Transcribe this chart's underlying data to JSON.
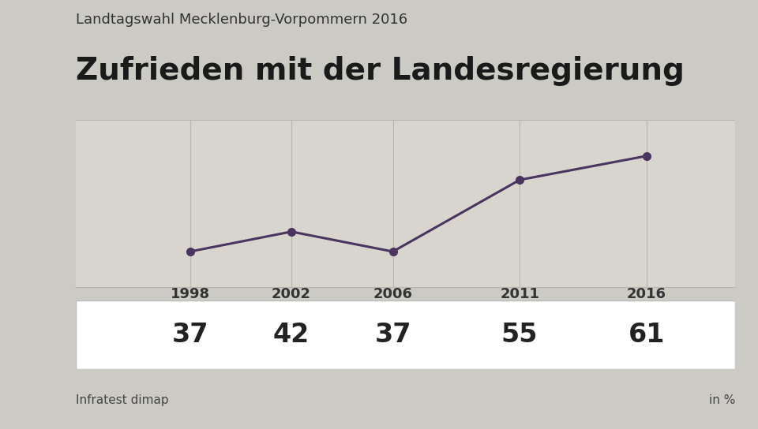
{
  "title_main": "Zufrieden mit der Landesregierung",
  "title_sub": "Landtagswahl Mecklenburg-Vorpommern 2016",
  "years": [
    1998,
    2002,
    2006,
    2011,
    2016
  ],
  "values": [
    37,
    42,
    37,
    55,
    61
  ],
  "line_color": "#4a3560",
  "marker_color": "#4a3560",
  "bg_color": "#cccac4",
  "plot_bg_color": "#d8d5ce",
  "table_bg_color": "#ffffff",
  "grid_color": "#b8b5ae",
  "source_left": "Infratest dimap",
  "source_right": "in %",
  "ylim_min": 28,
  "ylim_max": 70,
  "line_width": 2.2,
  "marker_size": 7,
  "title_sub_fontsize": 13,
  "title_main_fontsize": 28,
  "year_label_fontsize": 13,
  "value_fontsize": 24,
  "footer_fontsize": 11
}
